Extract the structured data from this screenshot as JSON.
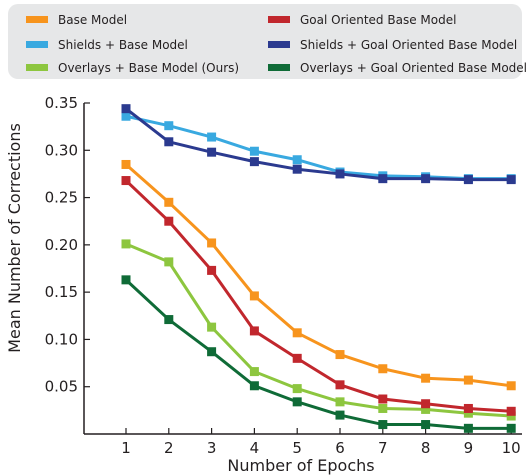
{
  "chart_data": {
    "type": "line",
    "title": "",
    "xlabel": "Number of Epochs",
    "ylabel": "Mean Number of Corrections",
    "x": [
      1,
      2,
      3,
      4,
      5,
      6,
      7,
      8,
      9,
      10
    ],
    "xlim": [
      0,
      10
    ],
    "ylim": [
      0,
      0.35
    ],
    "yticks": [
      "0.05",
      "0.10",
      "0.15",
      "0.20",
      "0.25",
      "0.30",
      "0.35"
    ],
    "xticks": [
      "1",
      "2",
      "3",
      "4",
      "5",
      "6",
      "7",
      "8",
      "9",
      "10"
    ],
    "grid": false,
    "legend_position": "top",
    "series": [
      {
        "name": "Base Model",
        "color": "#f7941d",
        "marker": "square",
        "values": [
          0.285,
          0.245,
          0.202,
          0.146,
          0.107,
          0.084,
          0.069,
          0.059,
          0.057,
          0.051
        ]
      },
      {
        "name": "Shields + Base Model",
        "color": "#39a9e0",
        "marker": "square",
        "values": [
          0.336,
          0.326,
          0.314,
          0.299,
          0.29,
          0.277,
          0.273,
          0.272,
          0.27,
          0.27
        ]
      },
      {
        "name": "Overlays + Base Model (Ours)",
        "color": "#8dc63f",
        "marker": "square",
        "values": [
          0.201,
          0.182,
          0.113,
          0.066,
          0.048,
          0.034,
          0.027,
          0.026,
          0.022,
          0.019
        ]
      },
      {
        "name": "Goal Oriented Base Model",
        "color": "#c1272d",
        "marker": "square",
        "values": [
          0.268,
          0.225,
          0.173,
          0.109,
          0.08,
          0.052,
          0.037,
          0.032,
          0.027,
          0.024
        ]
      },
      {
        "name": "Shields + Goal Oriented Base Model",
        "color": "#2b3a8f",
        "marker": "square",
        "values": [
          0.344,
          0.309,
          0.298,
          0.288,
          0.28,
          0.275,
          0.27,
          0.27,
          0.269,
          0.269
        ]
      },
      {
        "name": "Overlays + Goal Oriented Base Model (Ours)",
        "color": "#0f6b37",
        "marker": "square",
        "values": [
          0.163,
          0.121,
          0.087,
          0.051,
          0.034,
          0.02,
          0.01,
          0.01,
          0.006,
          0.006
        ]
      }
    ]
  }
}
